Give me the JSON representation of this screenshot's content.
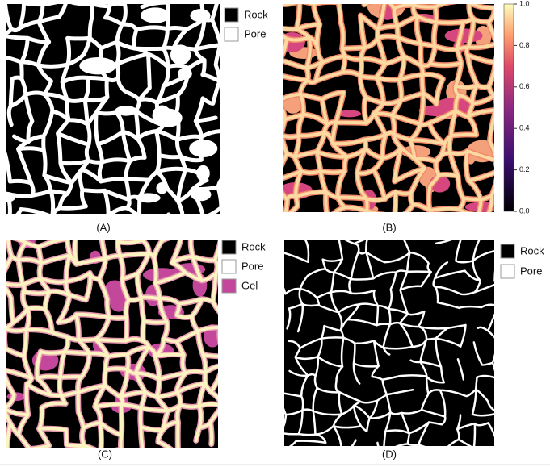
{
  "panels": [
    {
      "label": "(A)",
      "legend": [
        {
          "label": "Rock",
          "color": "#000000"
        },
        {
          "label": "Pore",
          "color": "#ffffff"
        }
      ]
    },
    {
      "label": "(B)",
      "colorbar": {
        "ticks": [
          "1.0",
          "0.8",
          "0.6",
          "0.4",
          "0.2",
          "0.0"
        ]
      }
    },
    {
      "label": "(C)",
      "legend": [
        {
          "label": "Rock",
          "color": "#000000"
        },
        {
          "label": "Pore",
          "color": "#ffffff"
        },
        {
          "label": "Gel",
          "color": "#c3479b"
        }
      ]
    },
    {
      "label": "(D)",
      "legend": [
        {
          "label": "Rock",
          "color": "#000000"
        },
        {
          "label": "Pore",
          "color": "#ffffff"
        }
      ]
    }
  ]
}
